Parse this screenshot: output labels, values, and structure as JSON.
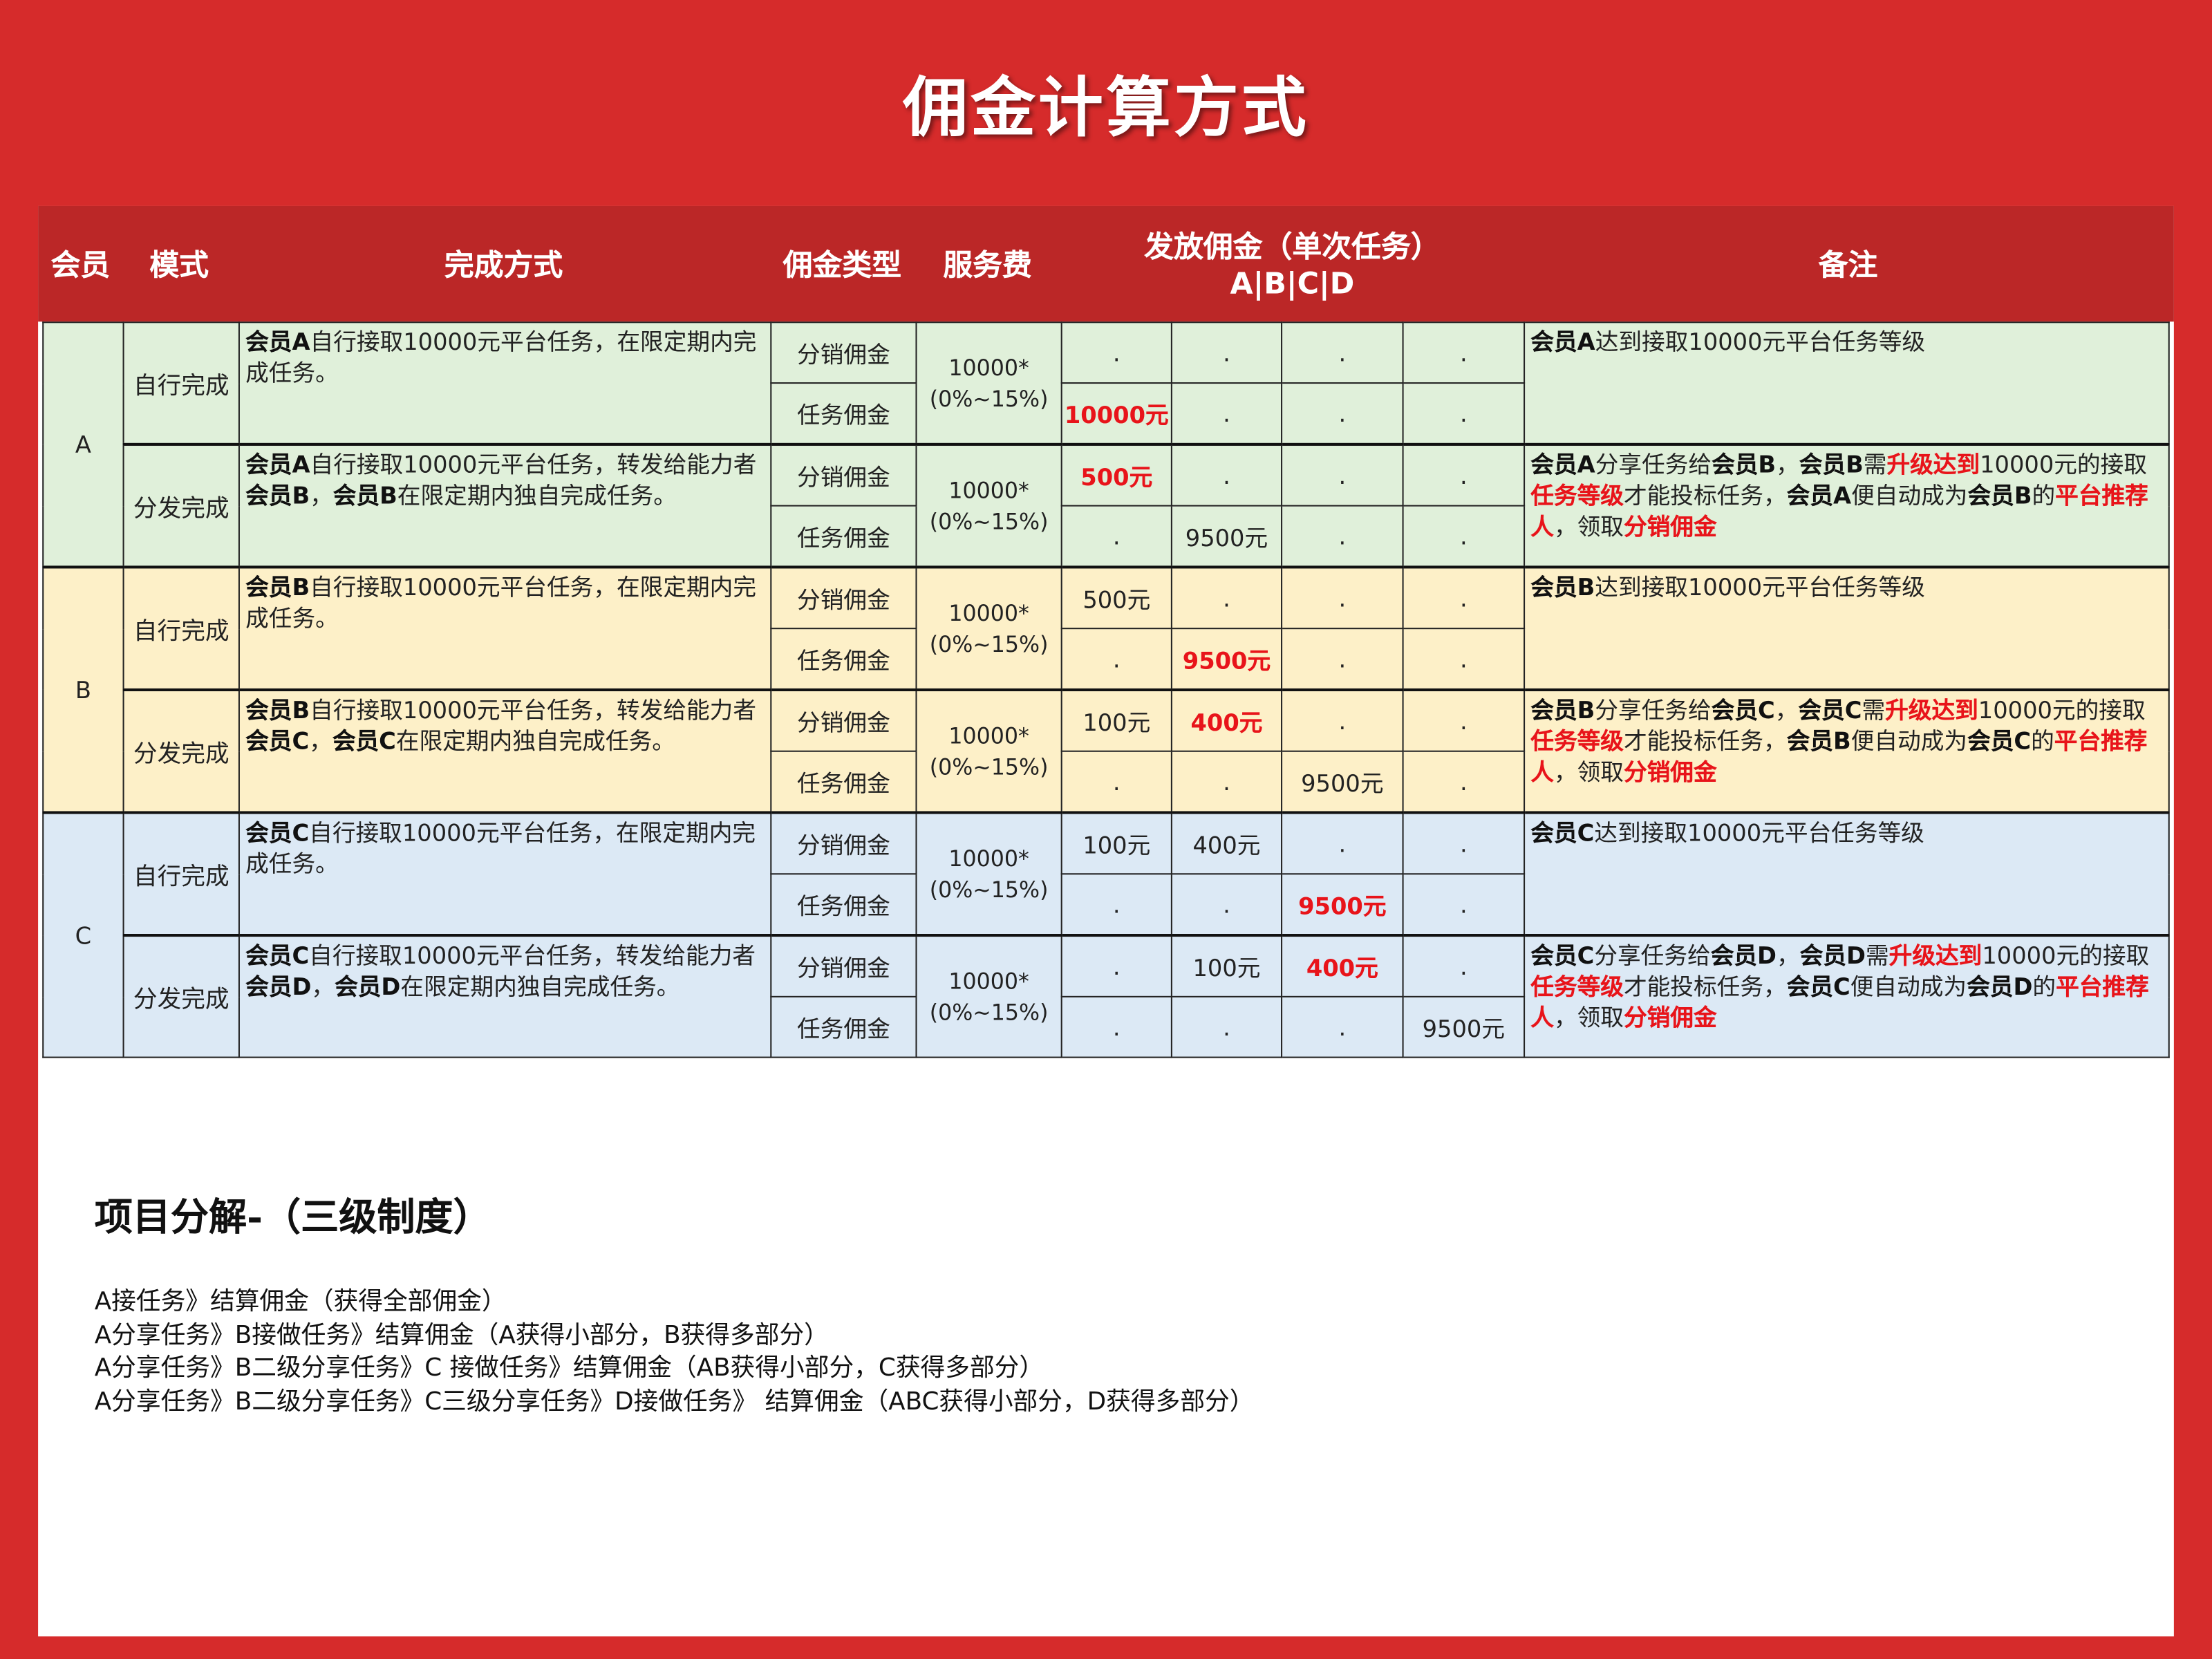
{
  "title": "佣金计算方式",
  "colors": {
    "background": "#d62b2b",
    "header": "#bb2727",
    "highlight": "#e8141a",
    "group_A": "#e0f0da",
    "group_B": "#fdf0c8",
    "group_C": "#dce9f5"
  },
  "header": {
    "member": "会员",
    "mode": "模式",
    "method": "完成方式",
    "type": "佣金类型",
    "fee": "服务费",
    "payout": "发放佣金（单次任务）",
    "payout_sub": "A|B|C|D",
    "remark": "备注"
  },
  "groups": [
    {
      "member": "A",
      "modes": [
        {
          "mode": "自行完成",
          "desc": [
            {
              "t": "会员A",
              "b": true
            },
            {
              "t": "自行接取10000元平台任务，在限定期内完成任务。"
            }
          ],
          "fee": [
            "10000*",
            "(0%~15%)"
          ],
          "rows": [
            {
              "type": "分销佣金",
              "vals": [
                ".",
                ".",
                ".",
                "."
              ],
              "red": []
            },
            {
              "type": "任务佣金",
              "vals": [
                "10000元",
                ".",
                ".",
                "."
              ],
              "red": [
                0
              ]
            }
          ],
          "remark": [
            {
              "t": "会员A",
              "b": true
            },
            {
              "t": "达到接取10000元平台任务等级"
            }
          ]
        },
        {
          "mode": "分发完成",
          "desc": [
            {
              "t": "会员A",
              "b": true
            },
            {
              "t": "自行接取10000元平台任务，转发给能力者"
            },
            {
              "t": "会员B",
              "b": true
            },
            {
              "t": "，"
            },
            {
              "t": "会员B",
              "b": true
            },
            {
              "t": "在限定期内独自完成任务。"
            }
          ],
          "fee": [
            "10000*",
            "(0%~15%)"
          ],
          "rows": [
            {
              "type": "分销佣金",
              "vals": [
                "500元",
                ".",
                ".",
                "."
              ],
              "red": [
                0
              ]
            },
            {
              "type": "任务佣金",
              "vals": [
                ".",
                "9500元",
                ".",
                "."
              ],
              "red": []
            }
          ],
          "remark": [
            {
              "t": "会员A",
              "b": true
            },
            {
              "t": "分享任务给"
            },
            {
              "t": "会员B",
              "b": true
            },
            {
              "t": "，"
            },
            {
              "t": "会员B",
              "b": true
            },
            {
              "t": "需"
            },
            {
              "t": "升级达到",
              "r": true
            },
            {
              "t": "10000元的接取"
            },
            {
              "t": "任务等级",
              "r": true
            },
            {
              "t": "才能投标任务，"
            },
            {
              "t": "会员A",
              "b": true
            },
            {
              "t": "便自动成为"
            },
            {
              "t": "会员B",
              "b": true
            },
            {
              "t": "的"
            },
            {
              "t": "平台推荐人",
              "r": true
            },
            {
              "t": "，领取"
            },
            {
              "t": "分销佣金",
              "r": true
            }
          ]
        }
      ]
    },
    {
      "member": "B",
      "modes": [
        {
          "mode": "自行完成",
          "desc": [
            {
              "t": "会员B",
              "b": true
            },
            {
              "t": "自行接取10000元平台任务，在限定期内完成任务。"
            }
          ],
          "fee": [
            "10000*",
            "(0%~15%)"
          ],
          "rows": [
            {
              "type": "分销佣金",
              "vals": [
                "500元",
                ".",
                ".",
                "."
              ],
              "red": []
            },
            {
              "type": "任务佣金",
              "vals": [
                ".",
                "9500元",
                ".",
                "."
              ],
              "red": [
                1
              ]
            }
          ],
          "remark": [
            {
              "t": "会员B",
              "b": true
            },
            {
              "t": "达到接取10000元平台任务等级"
            }
          ]
        },
        {
          "mode": "分发完成",
          "desc": [
            {
              "t": "会员B",
              "b": true
            },
            {
              "t": "自行接取10000元平台任务，转发给能力者"
            },
            {
              "t": "会员C",
              "b": true
            },
            {
              "t": "，"
            },
            {
              "t": "会员C",
              "b": true
            },
            {
              "t": "在限定期内独自完成任务。"
            }
          ],
          "fee": [
            "10000*",
            "(0%~15%)"
          ],
          "rows": [
            {
              "type": "分销佣金",
              "vals": [
                "100元",
                "400元",
                ".",
                "."
              ],
              "red": [
                1
              ]
            },
            {
              "type": "任务佣金",
              "vals": [
                ".",
                ".",
                "9500元",
                "."
              ],
              "red": []
            }
          ],
          "remark": [
            {
              "t": "会员B",
              "b": true
            },
            {
              "t": "分享任务给"
            },
            {
              "t": "会员C",
              "b": true
            },
            {
              "t": "，"
            },
            {
              "t": "会员C",
              "b": true
            },
            {
              "t": "需"
            },
            {
              "t": "升级达到",
              "r": true
            },
            {
              "t": "10000元的接取"
            },
            {
              "t": "任务等级",
              "r": true
            },
            {
              "t": "才能投标任务，"
            },
            {
              "t": "会员B",
              "b": true
            },
            {
              "t": "便自动成为"
            },
            {
              "t": "会员C",
              "b": true
            },
            {
              "t": "的"
            },
            {
              "t": "平台推荐人",
              "r": true
            },
            {
              "t": "，领取"
            },
            {
              "t": "分销佣金",
              "r": true
            }
          ]
        }
      ]
    },
    {
      "member": "C",
      "modes": [
        {
          "mode": "自行完成",
          "desc": [
            {
              "t": "会员C",
              "b": true
            },
            {
              "t": "自行接取10000元平台任务，在限定期内完成任务。"
            }
          ],
          "fee": [
            "10000*",
            "(0%~15%)"
          ],
          "rows": [
            {
              "type": "分销佣金",
              "vals": [
                "100元",
                "400元",
                ".",
                "."
              ],
              "red": []
            },
            {
              "type": "任务佣金",
              "vals": [
                ".",
                ".",
                "9500元",
                "."
              ],
              "red": [
                2
              ]
            }
          ],
          "remark": [
            {
              "t": "会员C",
              "b": true
            },
            {
              "t": "达到接取10000元平台任务等级"
            }
          ]
        },
        {
          "mode": "分发完成",
          "desc": [
            {
              "t": "会员C",
              "b": true
            },
            {
              "t": "自行接取10000元平台任务，转发给能力者"
            },
            {
              "t": "会员D",
              "b": true
            },
            {
              "t": "，"
            },
            {
              "t": "会员D",
              "b": true
            },
            {
              "t": "在限定期内独自完成任务。"
            }
          ],
          "fee": [
            "10000*",
            "(0%~15%)"
          ],
          "rows": [
            {
              "type": "分销佣金",
              "vals": [
                ".",
                "100元",
                "400元",
                "."
              ],
              "red": [
                2
              ]
            },
            {
              "type": "任务佣金",
              "vals": [
                ".",
                ".",
                ".",
                "9500元"
              ],
              "red": []
            }
          ],
          "remark": [
            {
              "t": "会员C",
              "b": true
            },
            {
              "t": "分享任务给"
            },
            {
              "t": "会员D",
              "b": true
            },
            {
              "t": "，"
            },
            {
              "t": "会员D",
              "b": true
            },
            {
              "t": "需"
            },
            {
              "t": "升级达到",
              "r": true
            },
            {
              "t": "10000元的接取"
            },
            {
              "t": "任务等级",
              "r": true
            },
            {
              "t": "才能投标任务，"
            },
            {
              "t": "会员C",
              "b": true
            },
            {
              "t": "便自动成为"
            },
            {
              "t": "会员D",
              "b": true
            },
            {
              "t": "的"
            },
            {
              "t": "平台推荐人",
              "r": true
            },
            {
              "t": "，领取"
            },
            {
              "t": "分销佣金",
              "r": true
            }
          ]
        }
      ]
    }
  ],
  "breakdown": {
    "title": "项目分解-（三级制度）",
    "lines": [
      "A接任务》结算佣金（获得全部佣金）",
      "A分享任务》B接做任务》结算佣金（A获得小部分，B获得多部分）",
      "A分享任务》B二级分享任务》C 接做任务》结算佣金（AB获得小部分，C获得多部分）",
      "A分享任务》B二级分享任务》C三级分享任务》D接做任务》 结算佣金（ABC获得小部分，D获得多部分）"
    ]
  }
}
